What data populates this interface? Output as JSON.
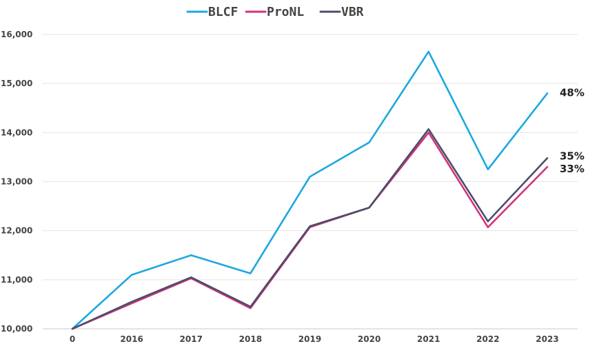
{
  "chart_data": {
    "type": "line",
    "title": "",
    "xlabel": "",
    "ylabel": "",
    "categories": [
      "0",
      "2016",
      "2017",
      "2018",
      "2019",
      "2020",
      "2021",
      "2022",
      "2023"
    ],
    "ylim": [
      10000,
      16000
    ],
    "y_ticks": [
      10000,
      11000,
      12000,
      13000,
      14000,
      15000,
      16000
    ],
    "y_tick_labels": [
      "10,000",
      "11,000",
      "12,000",
      "13,000",
      "14,000",
      "15,000",
      "16,000"
    ],
    "grid": "horizontal",
    "legend_position": "top-center",
    "series": [
      {
        "name": "BLCF",
        "color": "#1aa8e0",
        "values": [
          10000,
          11100,
          11500,
          11130,
          13100,
          13800,
          15650,
          13250,
          14800
        ],
        "end_label": "48%"
      },
      {
        "name": "ProNL",
        "color": "#d4317a",
        "values": [
          10000,
          10520,
          11030,
          10420,
          12070,
          12470,
          14000,
          12070,
          13300
        ],
        "end_label": "33%"
      },
      {
        "name": "VBR",
        "color": "#4a4e69",
        "values": [
          10000,
          10550,
          11050,
          10450,
          12090,
          12470,
          14070,
          12190,
          13480
        ],
        "end_label": "35%"
      }
    ]
  }
}
